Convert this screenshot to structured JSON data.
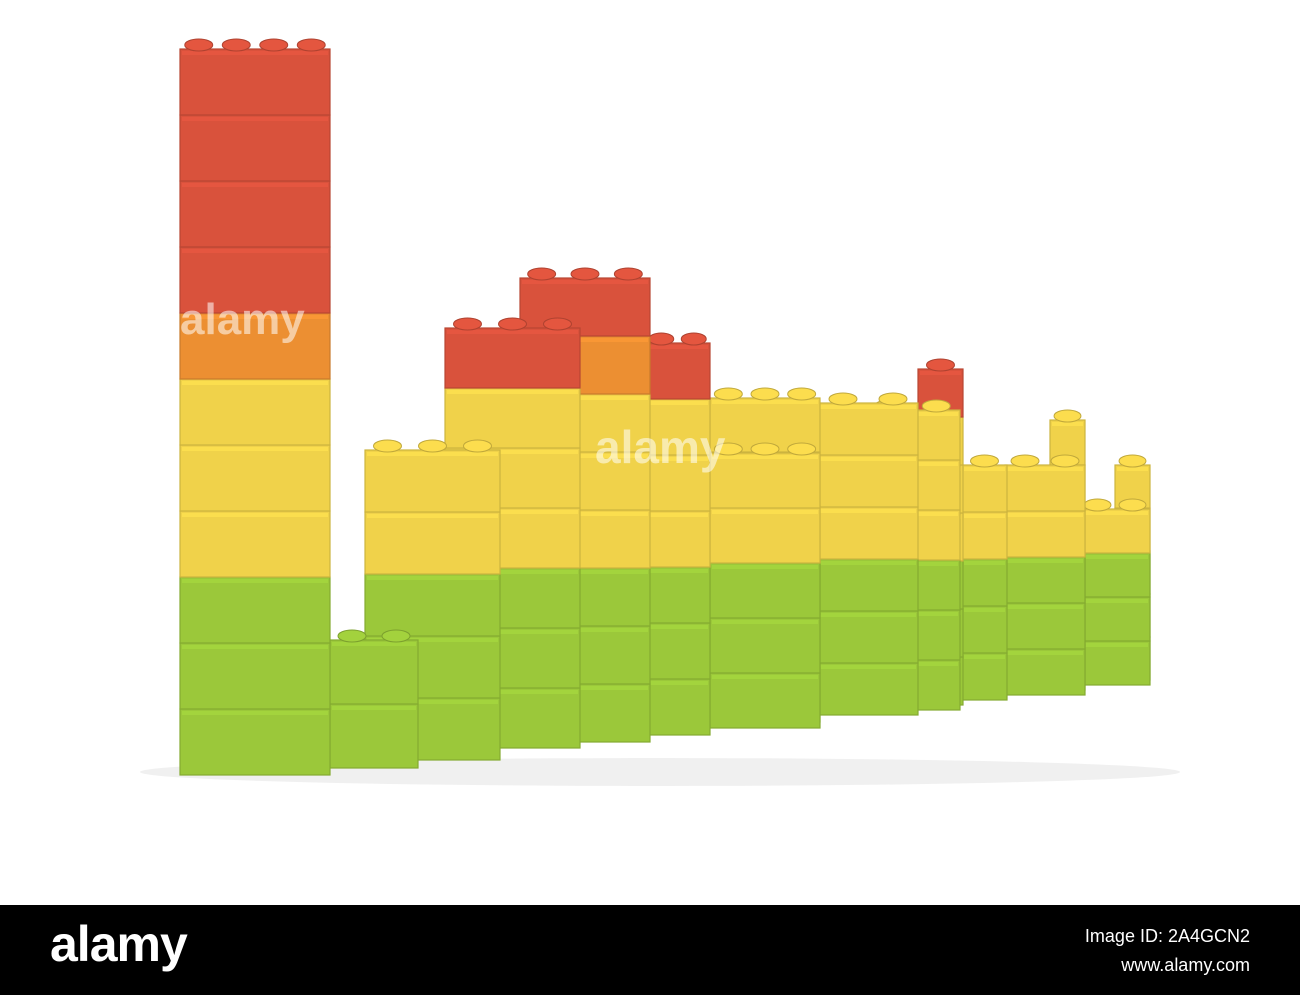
{
  "image": {
    "subject": "toy-brick-bar-graph",
    "background_color": "#ffffff",
    "brick_colors": {
      "green": "#9bc83a",
      "yellow": "#f0d24a",
      "orange": "#ec8f32",
      "red": "#d9523c"
    },
    "column_heights_in_bricks": [
      11,
      2,
      5,
      7,
      8,
      7,
      5,
      6,
      6,
      6,
      7,
      5,
      5,
      6,
      4,
      5
    ],
    "watermark": "alamy"
  },
  "footer": {
    "logo": "alamy",
    "image_id": "Image ID: 2A4GCN2",
    "site": "www.alamy.com"
  }
}
